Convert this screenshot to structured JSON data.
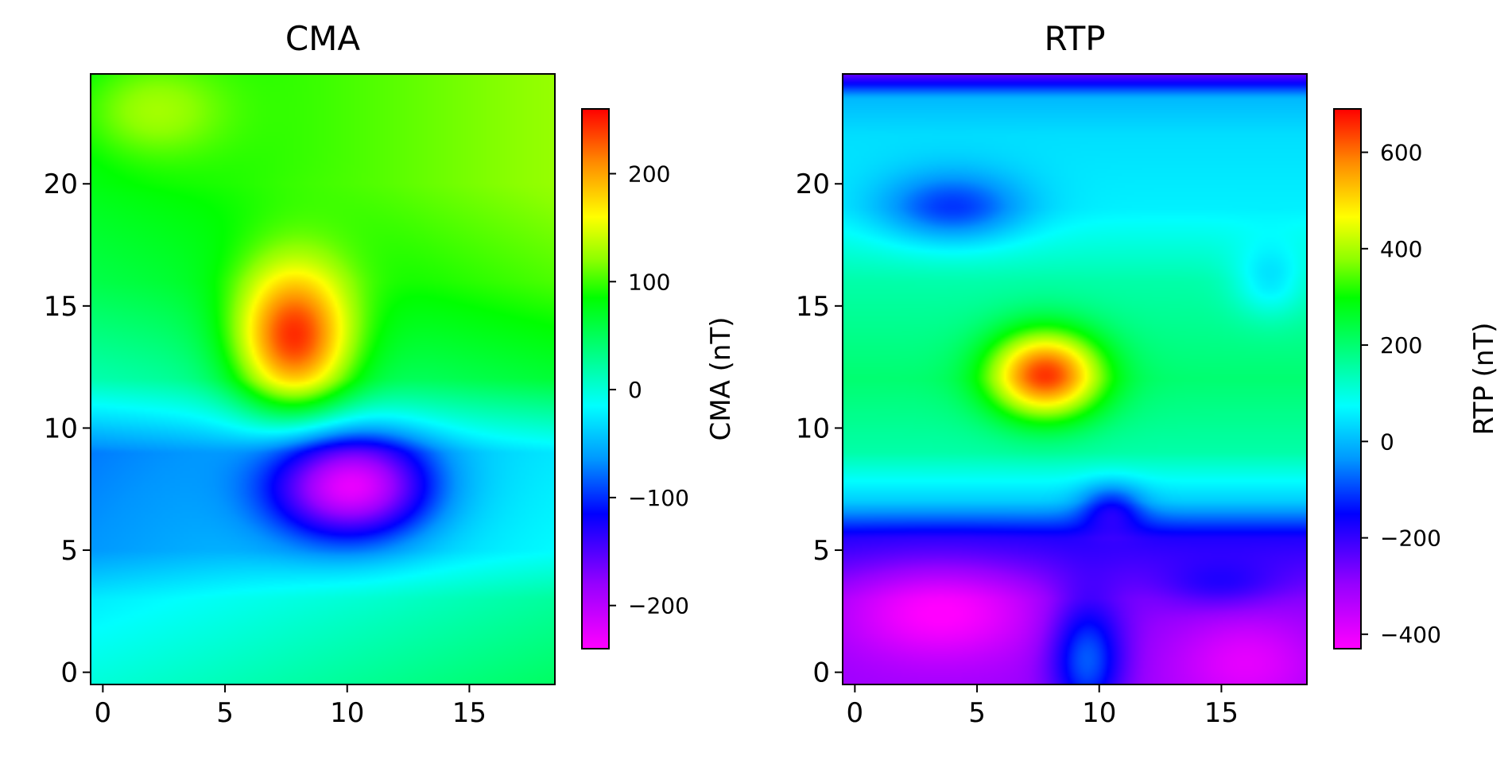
{
  "chart_data": [
    {
      "type": "heatmap",
      "title": "CMA",
      "xlabel": "",
      "ylabel": "",
      "xlim": [
        -0.5,
        18.5
      ],
      "ylim": [
        -0.5,
        24.5
      ],
      "x_ticks": [
        0,
        5,
        10,
        15
      ],
      "y_ticks": [
        0,
        5,
        10,
        15,
        20
      ],
      "colormap": "gist_rainbow",
      "colorbar": {
        "label": "CMA (nT)",
        "vmin": -240,
        "vmax": 260,
        "ticks": [
          -200,
          -100,
          0,
          100,
          200
        ]
      },
      "field": {
        "background": [
          {
            "y": 0,
            "value": 20
          },
          {
            "y": 3,
            "value": 0
          },
          {
            "y": 5,
            "value": -40
          },
          {
            "y": 9,
            "value": -50
          },
          {
            "y": 12,
            "value": 40
          },
          {
            "y": 16,
            "value": 80
          },
          {
            "y": 20,
            "value": 100
          },
          {
            "y": 24,
            "value": 100
          }
        ],
        "x_gradient": 2.5,
        "features": [
          {
            "x": 7.8,
            "y": 13.6,
            "value": 190,
            "sx": 2.4,
            "sy": 3.0
          },
          {
            "x": 10.2,
            "y": 7.6,
            "value": -185,
            "sx": 3.2,
            "sy": 2.1
          },
          {
            "x": 2.0,
            "y": 23.0,
            "value": 45,
            "sx": 3.0,
            "sy": 2.0
          }
        ]
      }
    },
    {
      "type": "heatmap",
      "title": "RTP",
      "xlabel": "",
      "ylabel": "",
      "xlim": [
        -0.5,
        18.5
      ],
      "ylim": [
        -0.5,
        24.5
      ],
      "x_ticks": [
        0,
        5,
        10,
        15
      ],
      "y_ticks": [
        0,
        5,
        10,
        15,
        20
      ],
      "colormap": "gist_rainbow",
      "colorbar": {
        "label": "RTP (nT)",
        "vmin": -430,
        "vmax": 690,
        "ticks": [
          -400,
          -200,
          0,
          200,
          400,
          600
        ]
      },
      "field": {
        "background": [
          {
            "y": 0,
            "value": -300
          },
          {
            "y": 3,
            "value": -280
          },
          {
            "y": 5.5,
            "value": -180
          },
          {
            "y": 7,
            "value": 20
          },
          {
            "y": 9,
            "value": 150
          },
          {
            "y": 12,
            "value": 200
          },
          {
            "y": 16,
            "value": 150
          },
          {
            "y": 19,
            "value": 60
          },
          {
            "y": 22,
            "value": 40
          },
          {
            "y": 23.5,
            "value": 0
          },
          {
            "y": 24.5,
            "value": -250
          }
        ],
        "x_gradient": 0,
        "features": [
          {
            "x": 7.8,
            "y": 12.2,
            "value": 450,
            "sx": 2.3,
            "sy": 1.8
          },
          {
            "x": 3.5,
            "y": 2.5,
            "value": -150,
            "sx": 4.0,
            "sy": 2.0
          },
          {
            "x": 9.5,
            "y": 0.5,
            "value": 220,
            "sx": 1.5,
            "sy": 2.5
          },
          {
            "x": 16.0,
            "y": 0.5,
            "value": -100,
            "sx": 3.0,
            "sy": 2.0
          },
          {
            "x": 10.5,
            "y": 6.8,
            "value": -150,
            "sx": 1.3,
            "sy": 1.0
          },
          {
            "x": 4.0,
            "y": 19.0,
            "value": -170,
            "sx": 3.0,
            "sy": 1.5
          },
          {
            "x": 17.0,
            "y": 16.0,
            "value": -100,
            "sx": 1.5,
            "sy": 1.5
          },
          {
            "x": 15.0,
            "y": 3.5,
            "value": 80,
            "sx": 2.5,
            "sy": 1.0
          }
        ]
      }
    }
  ]
}
